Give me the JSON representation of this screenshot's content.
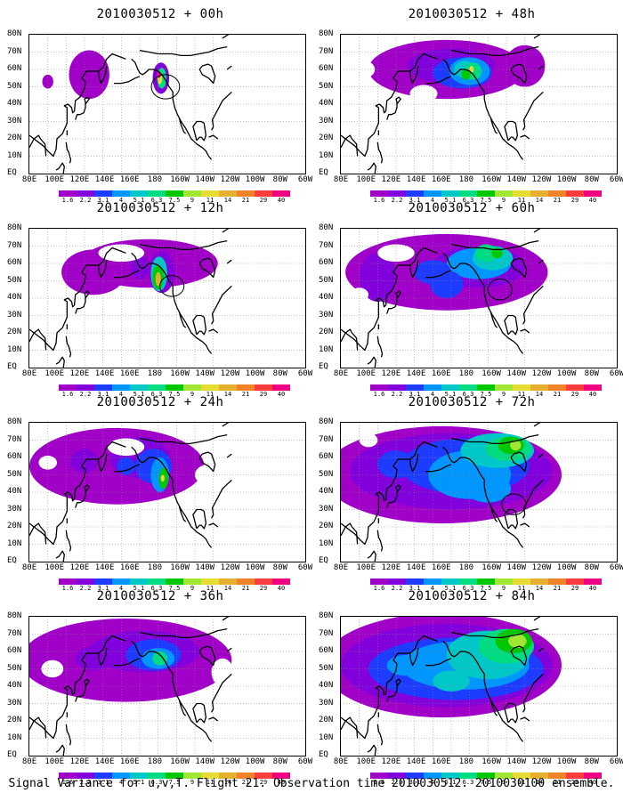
{
  "panels": [
    {
      "title": "2010030512 + 00h"
    },
    {
      "title": "2010030512 + 48h"
    },
    {
      "title": "2010030512 + 12h"
    },
    {
      "title": "2010030512 + 60h"
    },
    {
      "title": "2010030512 + 24h"
    },
    {
      "title": "2010030512 + 72h"
    },
    {
      "title": "2010030512 + 36h"
    },
    {
      "title": "2010030512 + 84h"
    }
  ],
  "latitude_labels": [
    "80N",
    "70N",
    "60N",
    "50N",
    "40N",
    "30N",
    "20N",
    "10N",
    "EQ"
  ],
  "longitude_labels": [
    "80E",
    "100E",
    "120E",
    "140E",
    "160E",
    "180",
    "160W",
    "140W",
    "120W",
    "100W",
    "80W",
    "60W"
  ],
  "colorbar": {
    "levels": [
      "1.6",
      "2.2",
      "3.1",
      "4",
      "5.1",
      "6.3",
      "7.5",
      "9",
      "11",
      "14",
      "21",
      "29",
      "40"
    ],
    "colors": [
      "#a000c8",
      "#8200dc",
      "#1e3cff",
      "#0096ff",
      "#00c8c8",
      "#00dc82",
      "#00c800",
      "#a0e632",
      "#e6dc32",
      "#e6af2d",
      "#f08228",
      "#fa3c3c",
      "#f00082"
    ]
  },
  "caption": "Signal Variance for u,v,T. Flight 21. Observation time 2010030512. 2010030100 ensemble."
}
